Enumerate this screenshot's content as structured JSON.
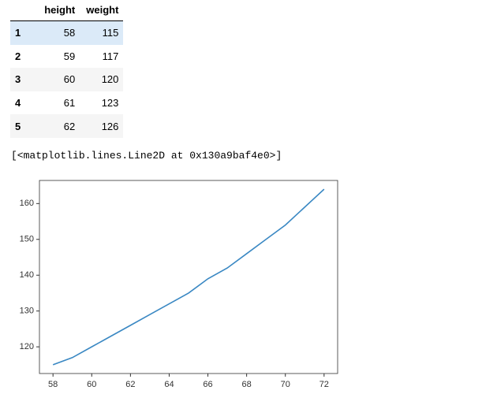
{
  "table": {
    "columns": [
      "height",
      "weight"
    ],
    "rows": [
      {
        "index": 1,
        "values": [
          58,
          115
        ]
      },
      {
        "index": 2,
        "values": [
          59,
          117
        ]
      },
      {
        "index": 3,
        "values": [
          60,
          120
        ]
      },
      {
        "index": 4,
        "values": [
          61,
          123
        ]
      },
      {
        "index": 5,
        "values": [
          62,
          126
        ]
      }
    ]
  },
  "output_text": "[<matplotlib.lines.Line2D at 0x130a9baf4e0>]",
  "chart_data": {
    "type": "line",
    "x": [
      58,
      59,
      60,
      61,
      62,
      63,
      64,
      65,
      66,
      67,
      68,
      69,
      70,
      71,
      72
    ],
    "series": [
      {
        "color": "#3a88c3",
        "values": [
          115,
          117,
          120,
          123,
          126,
          129,
          132,
          135,
          139,
          142,
          146,
          150,
          154,
          159,
          164
        ]
      }
    ],
    "xlim": [
      57.3,
      72.7
    ],
    "ylim": [
      112.55,
      166.45
    ],
    "xticks": [
      58,
      60,
      62,
      64,
      66,
      68,
      70,
      72
    ],
    "yticks": [
      120,
      130,
      140,
      150,
      160
    ]
  }
}
